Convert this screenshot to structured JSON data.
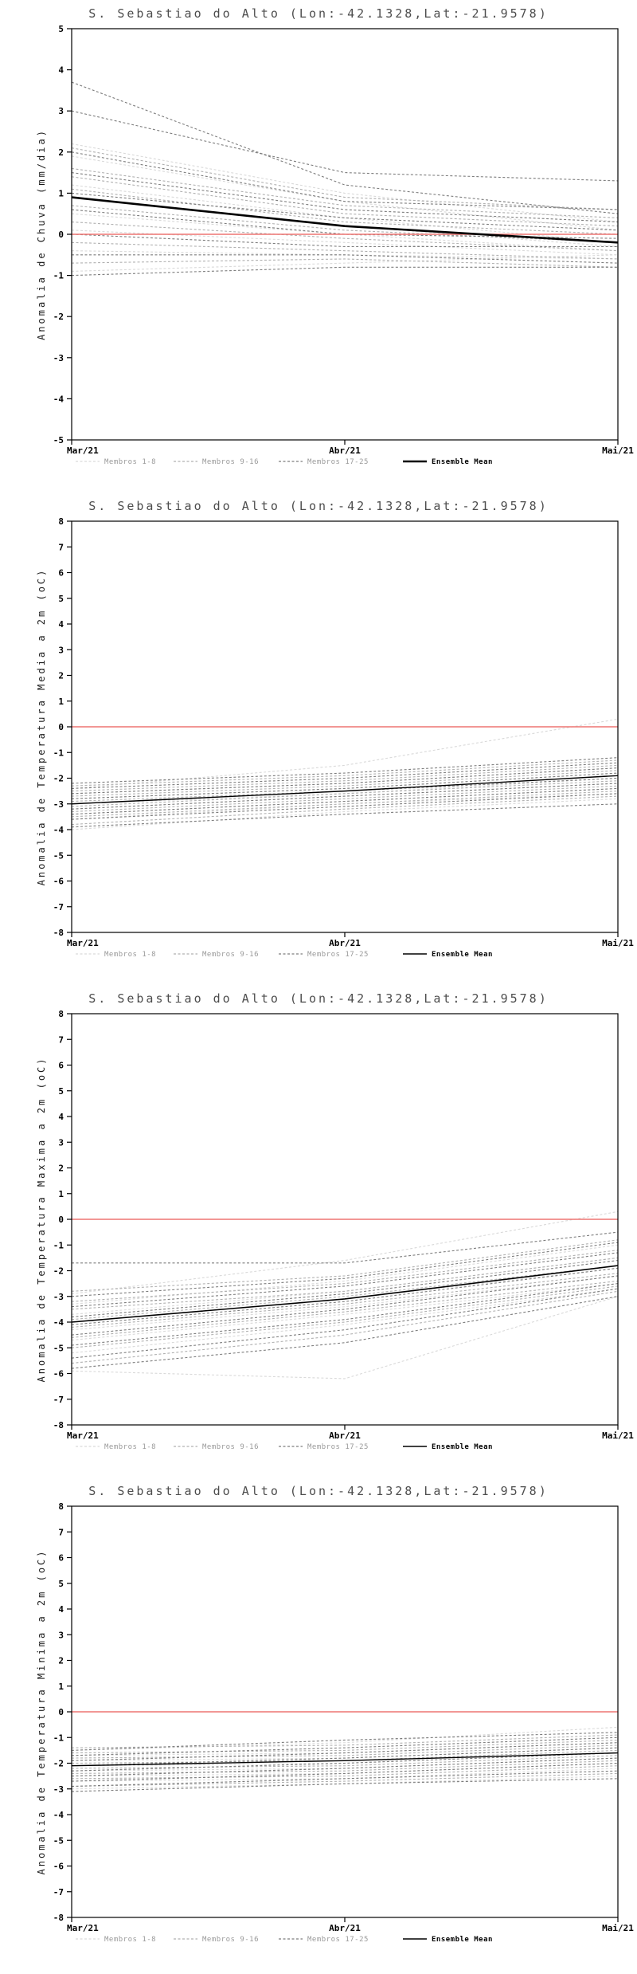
{
  "page": {
    "background": "#ffffff"
  },
  "chart_data": [
    {
      "type": "line",
      "title": "S. Sebastiao do Alto (Lon:-42.1328,Lat:-21.9578)",
      "ylabel": "Anomalia de Chuva (mm/dia)",
      "xlabel": "",
      "xtick_labels": [
        "Mar/21",
        "Abr/21",
        "Mai/21"
      ],
      "ylim": [
        -5,
        5
      ],
      "ytick_step": 1,
      "grid": false,
      "legend_position": "bottom",
      "reference_line": {
        "y": 0,
        "color": "#ee7572"
      },
      "groups": [
        {
          "name": "Membros 1-8",
          "color": "#d9d9d9",
          "dash": "3 2.5",
          "members": [
            [
              2.2,
              1.0,
              0.3
            ],
            [
              1.9,
              0.8,
              0.1
            ],
            [
              1.2,
              0.4,
              -0.2
            ],
            [
              0.9,
              0.2,
              -0.3
            ],
            [
              0.5,
              0.0,
              -0.4
            ],
            [
              0.1,
              -0.2,
              -0.5
            ],
            [
              -0.4,
              -0.5,
              -0.6
            ],
            [
              -0.9,
              -0.7,
              -0.5
            ]
          ]
        },
        {
          "name": "Membros 9-16",
          "color": "#b0b0b0",
          "dash": "3 2.5",
          "members": [
            [
              2.1,
              0.9,
              0.6
            ],
            [
              1.6,
              0.7,
              0.4
            ],
            [
              1.4,
              0.5,
              0.2
            ],
            [
              1.1,
              0.3,
              0.0
            ],
            [
              0.7,
              0.1,
              -0.2
            ],
            [
              0.3,
              -0.1,
              -0.4
            ],
            [
              -0.2,
              -0.4,
              -0.6
            ],
            [
              -0.7,
              -0.6,
              -0.8
            ]
          ]
        },
        {
          "name": "Membros 17-25",
          "color": "#7d7d7d",
          "dash": "3 2.5",
          "members": [
            [
              3.7,
              1.2,
              0.5
            ],
            [
              3.0,
              1.5,
              1.3
            ],
            [
              2.0,
              0.8,
              0.6
            ],
            [
              1.5,
              0.6,
              0.3
            ],
            [
              1.0,
              0.4,
              0.1
            ],
            [
              0.6,
              0.0,
              -0.1
            ],
            [
              0.0,
              -0.3,
              -0.3
            ],
            [
              -0.5,
              -0.5,
              -0.7
            ],
            [
              -1.0,
              -0.8,
              -0.8
            ]
          ]
        }
      ],
      "mean": {
        "name": "Ensemble Mean",
        "color": "#000000",
        "width": 2.6,
        "values": [
          0.9,
          0.2,
          -0.2
        ]
      }
    },
    {
      "type": "line",
      "title": "S. Sebastiao do Alto (Lon:-42.1328,Lat:-21.9578)",
      "ylabel": "Anomalia de Temperatura Media a 2m (oC)",
      "xlabel": "",
      "xtick_labels": [
        "Mar/21",
        "Abr/21",
        "Mai/21"
      ],
      "ylim": [
        -8,
        8
      ],
      "ytick_step": 1,
      "grid": false,
      "legend_position": "bottom",
      "reference_line": {
        "y": 0,
        "color": "#ee7572"
      },
      "groups": [
        {
          "name": "Membros 1-8",
          "color": "#d9d9d9",
          "dash": "3 2.5",
          "members": [
            [
              -2.4,
              -1.5,
              0.3
            ],
            [
              -2.6,
              -2.2,
              -1.6
            ],
            [
              -2.8,
              -2.4,
              -1.8
            ],
            [
              -3.0,
              -2.6,
              -2.0
            ],
            [
              -3.2,
              -2.7,
              -2.2
            ],
            [
              -3.4,
              -2.9,
              -2.4
            ],
            [
              -3.6,
              -3.0,
              -2.6
            ],
            [
              -4.0,
              -3.3,
              -2.8
            ]
          ]
        },
        {
          "name": "Membros 9-16",
          "color": "#b0b0b0",
          "dash": "3 2.5",
          "members": [
            [
              -2.3,
              -1.9,
              -1.3
            ],
            [
              -2.5,
              -2.1,
              -1.5
            ],
            [
              -2.7,
              -2.3,
              -1.7
            ],
            [
              -2.9,
              -2.5,
              -1.9
            ],
            [
              -3.1,
              -2.6,
              -2.1
            ],
            [
              -3.3,
              -2.8,
              -2.3
            ],
            [
              -3.5,
              -3.0,
              -2.5
            ],
            [
              -3.8,
              -3.2,
              -2.7
            ]
          ]
        },
        {
          "name": "Membros 17-25",
          "color": "#7d7d7d",
          "dash": "3 2.5",
          "members": [
            [
              -2.2,
              -1.8,
              -1.2
            ],
            [
              -2.4,
              -2.0,
              -1.4
            ],
            [
              -2.6,
              -2.2,
              -1.6
            ],
            [
              -2.8,
              -2.4,
              -1.8
            ],
            [
              -3.0,
              -2.5,
              -2.0
            ],
            [
              -3.2,
              -2.7,
              -2.2
            ],
            [
              -3.4,
              -2.9,
              -2.4
            ],
            [
              -3.6,
              -3.1,
              -2.6
            ],
            [
              -3.9,
              -3.4,
              -3.0
            ]
          ]
        }
      ],
      "mean": {
        "name": "Ensemble Mean",
        "color": "#000000",
        "width": 1.4,
        "values": [
          -3.0,
          -2.5,
          -1.9
        ]
      }
    },
    {
      "type": "line",
      "title": "S. Sebastiao do Alto (Lon:-42.1328,Lat:-21.9578)",
      "ylabel": "Anomalia de Temperatura Maxima a 2m (oC)",
      "xlabel": "",
      "xtick_labels": [
        "Mar/21",
        "Abr/21",
        "Mai/21"
      ],
      "ylim": [
        -8,
        8
      ],
      "ytick_step": 1,
      "grid": false,
      "legend_position": "bottom",
      "reference_line": {
        "y": 0,
        "color": "#ee7572"
      },
      "groups": [
        {
          "name": "Membros 1-8",
          "color": "#d9d9d9",
          "dash": "3 2.5",
          "members": [
            [
              -2.9,
              -1.6,
              0.3
            ],
            [
              -3.3,
              -2.4,
              -1.0
            ],
            [
              -3.7,
              -2.8,
              -1.5
            ],
            [
              -4.0,
              -3.1,
              -1.9
            ],
            [
              -4.3,
              -3.4,
              -2.2
            ],
            [
              -4.7,
              -3.7,
              -2.5
            ],
            [
              -5.2,
              -4.1,
              -2.7
            ],
            [
              -5.9,
              -6.2,
              -3.0
            ]
          ]
        },
        {
          "name": "Membros 9-16",
          "color": "#b0b0b0",
          "dash": "3 2.5",
          "members": [
            [
              -2.8,
              -2.2,
              -0.8
            ],
            [
              -3.2,
              -2.5,
              -1.2
            ],
            [
              -3.5,
              -2.8,
              -1.5
            ],
            [
              -3.9,
              -3.0,
              -1.8
            ],
            [
              -4.2,
              -3.3,
              -2.1
            ],
            [
              -4.6,
              -3.6,
              -2.4
            ],
            [
              -5.0,
              -4.0,
              -2.6
            ],
            [
              -5.6,
              -4.5,
              -2.8
            ]
          ]
        },
        {
          "name": "Membros 17-25",
          "color": "#7d7d7d",
          "dash": "3 2.5",
          "members": [
            [
              -1.7,
              -1.7,
              -0.5
            ],
            [
              -3.0,
              -2.3,
              -0.9
            ],
            [
              -3.4,
              -2.6,
              -1.3
            ],
            [
              -3.8,
              -2.9,
              -1.6
            ],
            [
              -4.1,
              -3.2,
              -1.9
            ],
            [
              -4.5,
              -3.5,
              -2.2
            ],
            [
              -4.9,
              -3.9,
              -2.5
            ],
            [
              -5.4,
              -4.3,
              -2.7
            ],
            [
              -5.8,
              -4.8,
              -3.0
            ]
          ]
        }
      ],
      "mean": {
        "name": "Ensemble Mean",
        "color": "#000000",
        "width": 1.6,
        "values": [
          -4.0,
          -3.1,
          -1.8
        ]
      }
    },
    {
      "type": "line",
      "title": "S. Sebastiao do Alto (Lon:-42.1328,Lat:-21.9578)",
      "ylabel": "Anomalia de Temperatura Minima a 2m (oC)",
      "xlabel": "",
      "xtick_labels": [
        "Mar/21",
        "Abr/21",
        "Mai/21"
      ],
      "ylim": [
        -8,
        8
      ],
      "ytick_step": 1,
      "grid": false,
      "legend_position": "bottom",
      "reference_line": {
        "y": 0,
        "color": "#ee7572"
      },
      "groups": [
        {
          "name": "Membros 1-8",
          "color": "#d9d9d9",
          "dash": "3 2.5",
          "members": [
            [
              -1.5,
              -1.2,
              -0.6
            ],
            [
              -1.7,
              -1.6,
              -1.2
            ],
            [
              -1.9,
              -1.8,
              -1.4
            ],
            [
              -2.1,
              -2.0,
              -1.6
            ],
            [
              -2.3,
              -2.2,
              -1.8
            ],
            [
              -2.5,
              -2.4,
              -2.0
            ],
            [
              -2.7,
              -2.6,
              -2.2
            ],
            [
              -3.0,
              -2.8,
              -2.5
            ]
          ]
        },
        {
          "name": "Membros 9-16",
          "color": "#b0b0b0",
          "dash": "3 2.5",
          "members": [
            [
              -1.4,
              -1.3,
              -0.9
            ],
            [
              -1.6,
              -1.5,
              -1.1
            ],
            [
              -1.8,
              -1.7,
              -1.3
            ],
            [
              -2.0,
              -1.9,
              -1.5
            ],
            [
              -2.2,
              -2.1,
              -1.7
            ],
            [
              -2.4,
              -2.3,
              -1.9
            ],
            [
              -2.6,
              -2.5,
              -2.1
            ],
            [
              -2.9,
              -2.7,
              -2.4
            ]
          ]
        },
        {
          "name": "Membros 17-25",
          "color": "#7d7d7d",
          "dash": "3 2.5",
          "members": [
            [
              -1.5,
              -1.1,
              -0.8
            ],
            [
              -1.7,
              -1.4,
              -1.0
            ],
            [
              -1.9,
              -1.6,
              -1.2
            ],
            [
              -2.1,
              -1.8,
              -1.4
            ],
            [
              -2.3,
              -2.0,
              -1.6
            ],
            [
              -2.5,
              -2.2,
              -1.8
            ],
            [
              -2.7,
              -2.4,
              -2.0
            ],
            [
              -2.9,
              -2.6,
              -2.3
            ],
            [
              -3.1,
              -2.8,
              -2.6
            ]
          ]
        }
      ],
      "mean": {
        "name": "Ensemble Mean",
        "color": "#000000",
        "width": 1.4,
        "values": [
          -2.1,
          -1.9,
          -1.6
        ]
      }
    }
  ]
}
